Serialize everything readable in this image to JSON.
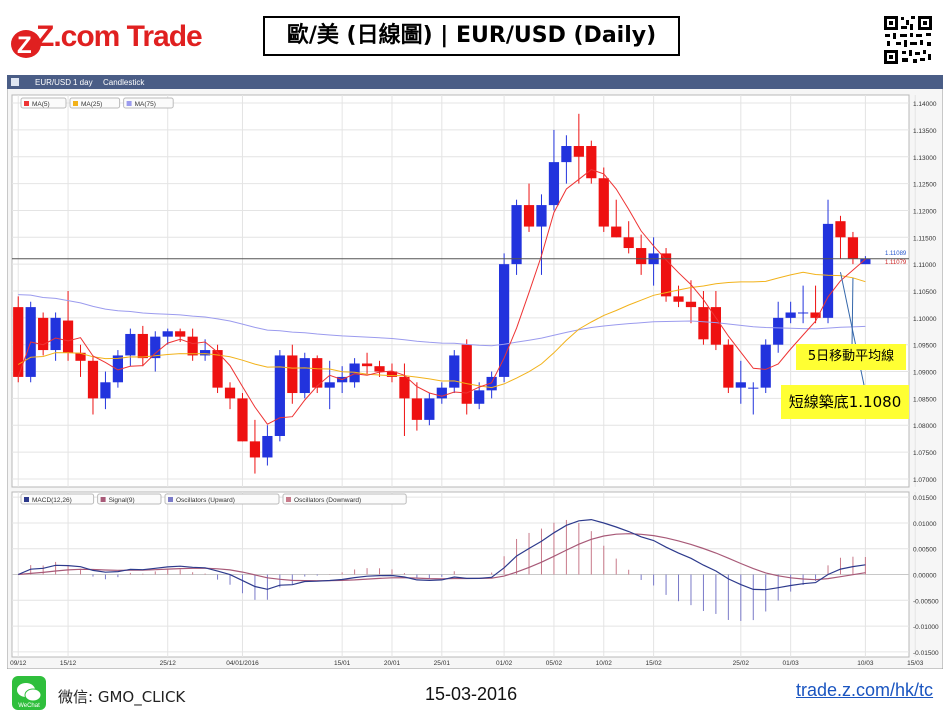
{
  "header": {
    "brand": "Z.com Trade",
    "title": "歐/美 (日線圖) | EUR/USD  (Daily)"
  },
  "toolbar": {
    "symbol": "EUR/USD",
    "interval": "1 day",
    "style": "Candlestick"
  },
  "annotations": {
    "ma_label": "5日移動平均線",
    "support_label": "短線築底1.1080"
  },
  "footer": {
    "wechat": "微信: GMO_CLICK",
    "wechat_icon_caption": "WeChat",
    "date": "15-03-2016",
    "url": "trade.z.com/hk/tc"
  },
  "colors": {
    "up": "#2233dd",
    "down": "#ee1111",
    "ma5": "#ee3333",
    "ma25": "#f2b21a",
    "ma75": "#9b9bee",
    "macd": "#2d3a8c",
    "signal": "#a85a78",
    "osc_up": "#7a7ac8",
    "osc_down": "#c87a8a"
  },
  "chart_data": [
    {
      "type": "candlestick",
      "legend": [
        "MA(5)",
        "MA(25)",
        "MA(75)"
      ],
      "y_ticks": [
        "1.14000",
        "1.13500",
        "1.13000",
        "1.12500",
        "1.12000",
        "1.11500",
        "1.11000",
        "1.10500",
        "1.10000",
        "1.09500",
        "1.09000",
        "1.08500",
        "1.08000",
        "1.07500",
        "1.07000"
      ],
      "ylim": [
        1.0685,
        1.1415
      ],
      "x_labels": [
        "09/12",
        "15/12",
        "25/12",
        "04/01/2016",
        "15/01",
        "20/01",
        "25/01",
        "01/02",
        "05/02",
        "10/02",
        "15/02",
        "25/02",
        "01/03",
        "10/03",
        "15/03"
      ],
      "x_label_index": [
        0,
        4,
        12,
        18,
        26,
        30,
        34,
        39,
        43,
        47,
        51,
        58,
        62,
        68,
        72
      ],
      "price_labels": [
        "1.11089",
        "1.11079"
      ],
      "candles": [
        [
          1.102,
          1.104,
          1.088,
          1.089
        ],
        [
          1.089,
          1.103,
          1.088,
          1.102
        ],
        [
          1.1,
          1.101,
          1.093,
          1.094
        ],
        [
          1.094,
          1.101,
          1.092,
          1.1
        ],
        [
          1.0995,
          1.105,
          1.092,
          1.0935
        ],
        [
          1.0935,
          1.095,
          1.089,
          1.092
        ],
        [
          1.092,
          1.093,
          1.082,
          1.085
        ],
        [
          1.085,
          1.09,
          1.083,
          1.088
        ],
        [
          1.088,
          1.094,
          1.087,
          1.093
        ],
        [
          1.093,
          1.098,
          1.091,
          1.097
        ],
        [
          1.097,
          1.0985,
          1.091,
          1.0925
        ],
        [
          1.0925,
          1.0975,
          1.09,
          1.0965
        ],
        [
          1.0965,
          1.098,
          1.095,
          1.0975
        ],
        [
          1.0975,
          1.098,
          1.0955,
          1.0965
        ],
        [
          1.0965,
          1.098,
          1.092,
          1.093
        ],
        [
          1.093,
          1.096,
          1.092,
          1.094
        ],
        [
          1.094,
          1.095,
          1.086,
          1.087
        ],
        [
          1.087,
          1.088,
          1.083,
          1.085
        ],
        [
          1.085,
          1.086,
          1.077,
          1.077
        ],
        [
          1.077,
          1.081,
          1.071,
          1.074
        ],
        [
          1.074,
          1.08,
          1.0725,
          1.078
        ],
        [
          1.078,
          1.094,
          1.077,
          1.093
        ],
        [
          1.093,
          1.095,
          1.084,
          1.086
        ],
        [
          1.086,
          1.0935,
          1.085,
          1.0925
        ],
        [
          1.0925,
          1.093,
          1.086,
          1.087
        ],
        [
          1.087,
          1.092,
          1.083,
          1.088
        ],
        [
          1.088,
          1.091,
          1.086,
          1.089
        ],
        [
          1.088,
          1.0925,
          1.087,
          1.0915
        ],
        [
          1.0915,
          1.0935,
          1.0895,
          1.091
        ],
        [
          1.091,
          1.092,
          1.089,
          1.09
        ],
        [
          1.09,
          1.0915,
          1.088,
          1.089
        ],
        [
          1.089,
          1.0915,
          1.078,
          1.085
        ],
        [
          1.085,
          1.088,
          1.079,
          1.081
        ],
        [
          1.081,
          1.086,
          1.08,
          1.085
        ],
        [
          1.085,
          1.088,
          1.084,
          1.087
        ],
        [
          1.087,
          1.094,
          1.086,
          1.093
        ],
        [
          1.095,
          1.096,
          1.082,
          1.084
        ],
        [
          1.084,
          1.088,
          1.083,
          1.0865
        ],
        [
          1.0865,
          1.09,
          1.085,
          1.089
        ],
        [
          1.089,
          1.112,
          1.088,
          1.11
        ],
        [
          1.11,
          1.122,
          1.108,
          1.121
        ],
        [
          1.121,
          1.125,
          1.116,
          1.117
        ],
        [
          1.117,
          1.123,
          1.108,
          1.121
        ],
        [
          1.121,
          1.135,
          1.12,
          1.129
        ],
        [
          1.129,
          1.134,
          1.125,
          1.132
        ],
        [
          1.132,
          1.138,
          1.125,
          1.13
        ],
        [
          1.132,
          1.133,
          1.125,
          1.126
        ],
        [
          1.126,
          1.128,
          1.116,
          1.117
        ],
        [
          1.117,
          1.122,
          1.115,
          1.115
        ],
        [
          1.115,
          1.118,
          1.112,
          1.113
        ],
        [
          1.113,
          1.1155,
          1.108,
          1.11
        ],
        [
          1.11,
          1.115,
          1.106,
          1.112
        ],
        [
          1.112,
          1.113,
          1.103,
          1.104
        ],
        [
          1.104,
          1.106,
          1.102,
          1.103
        ],
        [
          1.103,
          1.107,
          1.099,
          1.102
        ],
        [
          1.102,
          1.105,
          1.095,
          1.096
        ],
        [
          1.102,
          1.105,
          1.094,
          1.095
        ],
        [
          1.095,
          1.096,
          1.086,
          1.087
        ],
        [
          1.087,
          1.092,
          1.084,
          1.088
        ],
        [
          1.087,
          1.088,
          1.082,
          1.087
        ],
        [
          1.087,
          1.096,
          1.086,
          1.095
        ],
        [
          1.095,
          1.103,
          1.0935,
          1.1
        ],
        [
          1.1,
          1.103,
          1.099,
          1.101
        ],
        [
          1.101,
          1.106,
          1.099,
          1.101
        ],
        [
          1.101,
          1.106,
          1.099,
          1.1
        ],
        [
          1.1,
          1.122,
          1.099,
          1.1175
        ],
        [
          1.118,
          1.119,
          1.111,
          1.115
        ],
        [
          1.115,
          1.116,
          1.11,
          1.111
        ],
        [
          1.11,
          1.1115,
          1.11,
          1.111
        ]
      ]
    },
    {
      "type": "line",
      "legend": [
        "MACD(12,26)",
        "Signal(9)",
        "Oscillators (Upward)",
        "Oscillators (Downward)"
      ],
      "y_ticks": [
        "0.01500",
        "0.01000",
        "0.00500",
        "0.00000",
        "-0.00500",
        "-0.01000",
        "-0.01500"
      ],
      "ylim": [
        -0.016,
        0.016
      ]
    }
  ]
}
